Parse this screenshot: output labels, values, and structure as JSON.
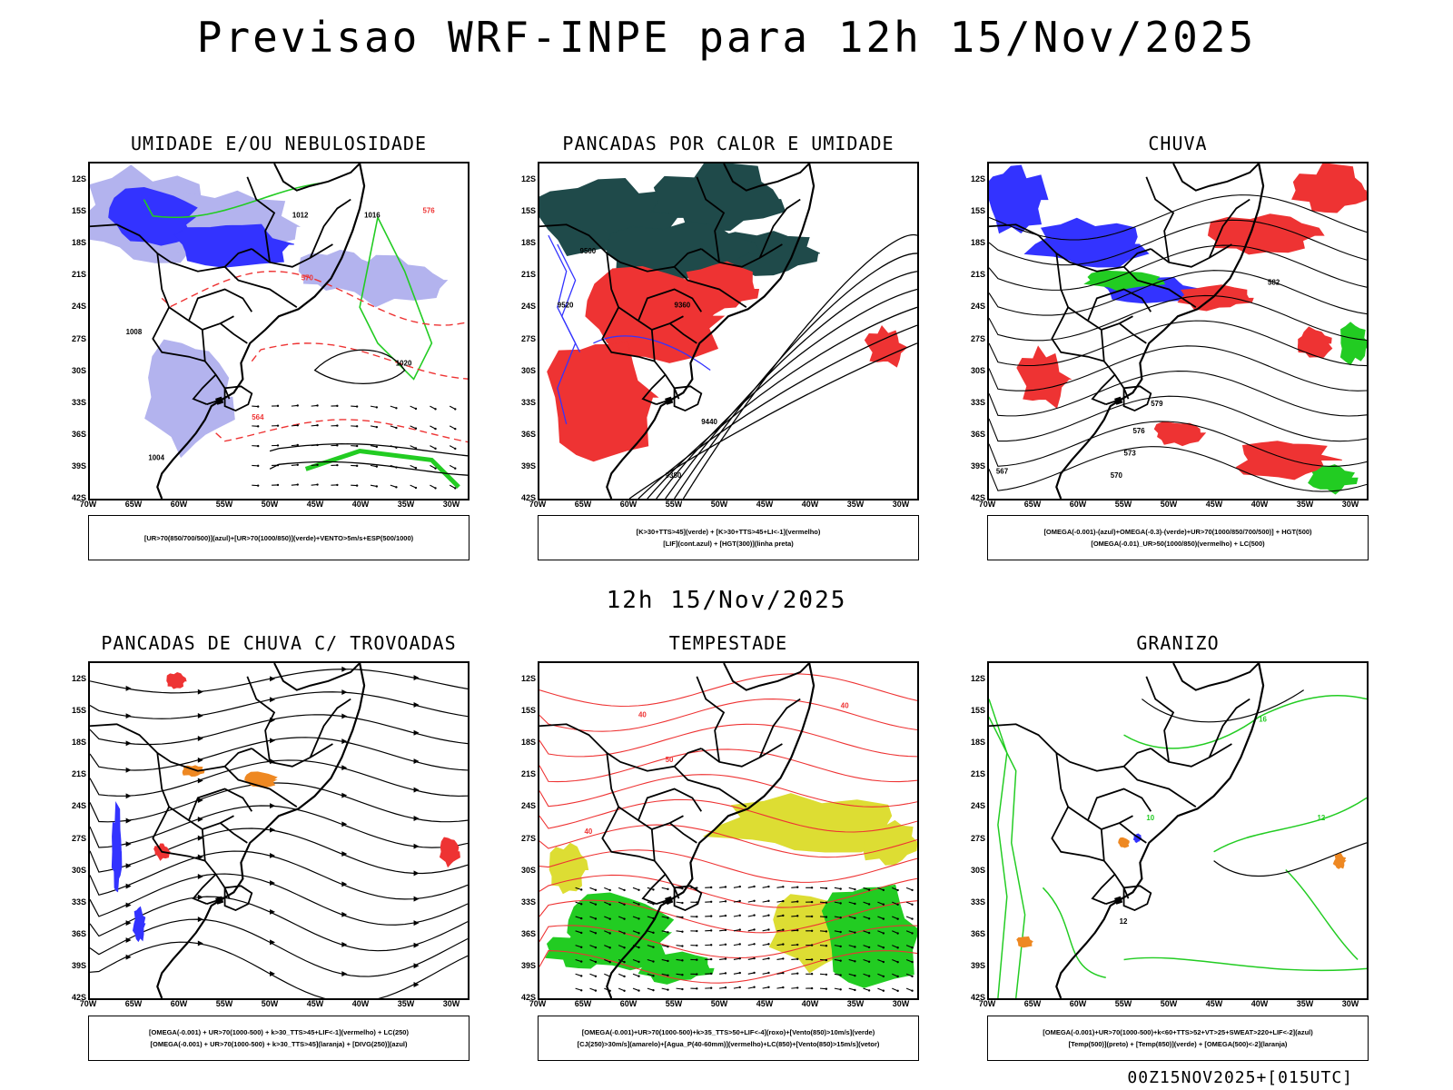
{
  "title": "Previsao WRF-INPE  para 12h 15/Nov/2025",
  "subtitle": "12h 15/Nov/2025",
  "footer": "00Z15NOV2025+[015UTC]",
  "lat_ticks": [
    "12S",
    "15S",
    "18S",
    "21S",
    "24S",
    "27S",
    "30S",
    "33S",
    "36S",
    "39S",
    "42S"
  ],
  "lon_ticks": [
    "70W",
    "65W",
    "60W",
    "55W",
    "50W",
    "45W",
    "40W",
    "35W",
    "30W"
  ],
  "colors": {
    "blue": "#3333ff",
    "green": "#22cc22",
    "red": "#ee3333",
    "darkteal": "#1f4a4a",
    "orange": "#ee8822",
    "yellow": "#dddd33",
    "lightpurple": "#b3b3ee"
  },
  "panels": [
    {
      "title": "UMIDADE E/OU NEBULOSIDADE",
      "legend": [
        "[UR>70(850/700/500)](azul)+[UR>70(1000/850)](verde)+VENTO>5m/s+ESP(500/1000)"
      ],
      "labels": [
        "1012",
        "1016",
        "1020",
        "1008",
        "1004",
        "570",
        "564",
        "576"
      ]
    },
    {
      "title": "PANCADAS POR CALOR E UMIDADE",
      "legend": [
        "[K>30+TTS>45](verde) + [K>30+TTS>45+LI<-1](vermelho)",
        "[LIF](cont.azul) + [HGT(300)](linha preta)"
      ],
      "labels": [
        "9500",
        "9520",
        "9440",
        "9360",
        "9380"
      ]
    },
    {
      "title": "CHUVA",
      "legend": [
        "[OMEGA(-0.001)-(azul)+OMEGA(-0.3)-(verde)+UR>70(1000/850/700/500)] + HGT(500)",
        "[OMEGA(-0.01)_UR>50(1000/850)(vermelho) + LC(500)"
      ],
      "labels": [
        "582",
        "579",
        "576",
        "573",
        "570",
        "567"
      ]
    },
    {
      "title": "PANCADAS DE CHUVA C/ TROVOADAS",
      "legend": [
        "[OMEGA(-0.001) + UR>70(1000-500) + k>30_TTS>45+LIF<-1](vermelho) + LC(250)",
        "[OMEGA(-0.001) + UR>70(1000-500) + k>30_TTS>45](laranja) + [DIVG(250)](azul)"
      ],
      "labels": []
    },
    {
      "title": "TEMPESTADE",
      "legend": [
        "[OMEGA(-0.001)+UR>70(1000-500)+k>35_TTS>50+LIF<-4](roxo)+[Vento(850)>10m/s](verde)",
        "[CJ(250)>30m/s](amarelo)+[Agua_P(40-60mm)](vermelho)+LC(850)+[Vento(850)>15m/s](vetor)"
      ],
      "labels": [
        "40",
        "50",
        "40",
        "40"
      ]
    },
    {
      "title": "GRANIZO",
      "legend": [
        "[OMEGA(-0.001)+UR>70(1000-500)+k<60+TTS>52+VT>25+SWEAT>220+LIF<-2](azul)",
        "[Temp(500)](preto) + [Temp(850)](verde) + [OMEGA(500)<-2](laranja)"
      ],
      "labels": [
        "12",
        "16",
        "10",
        "12"
      ]
    }
  ]
}
